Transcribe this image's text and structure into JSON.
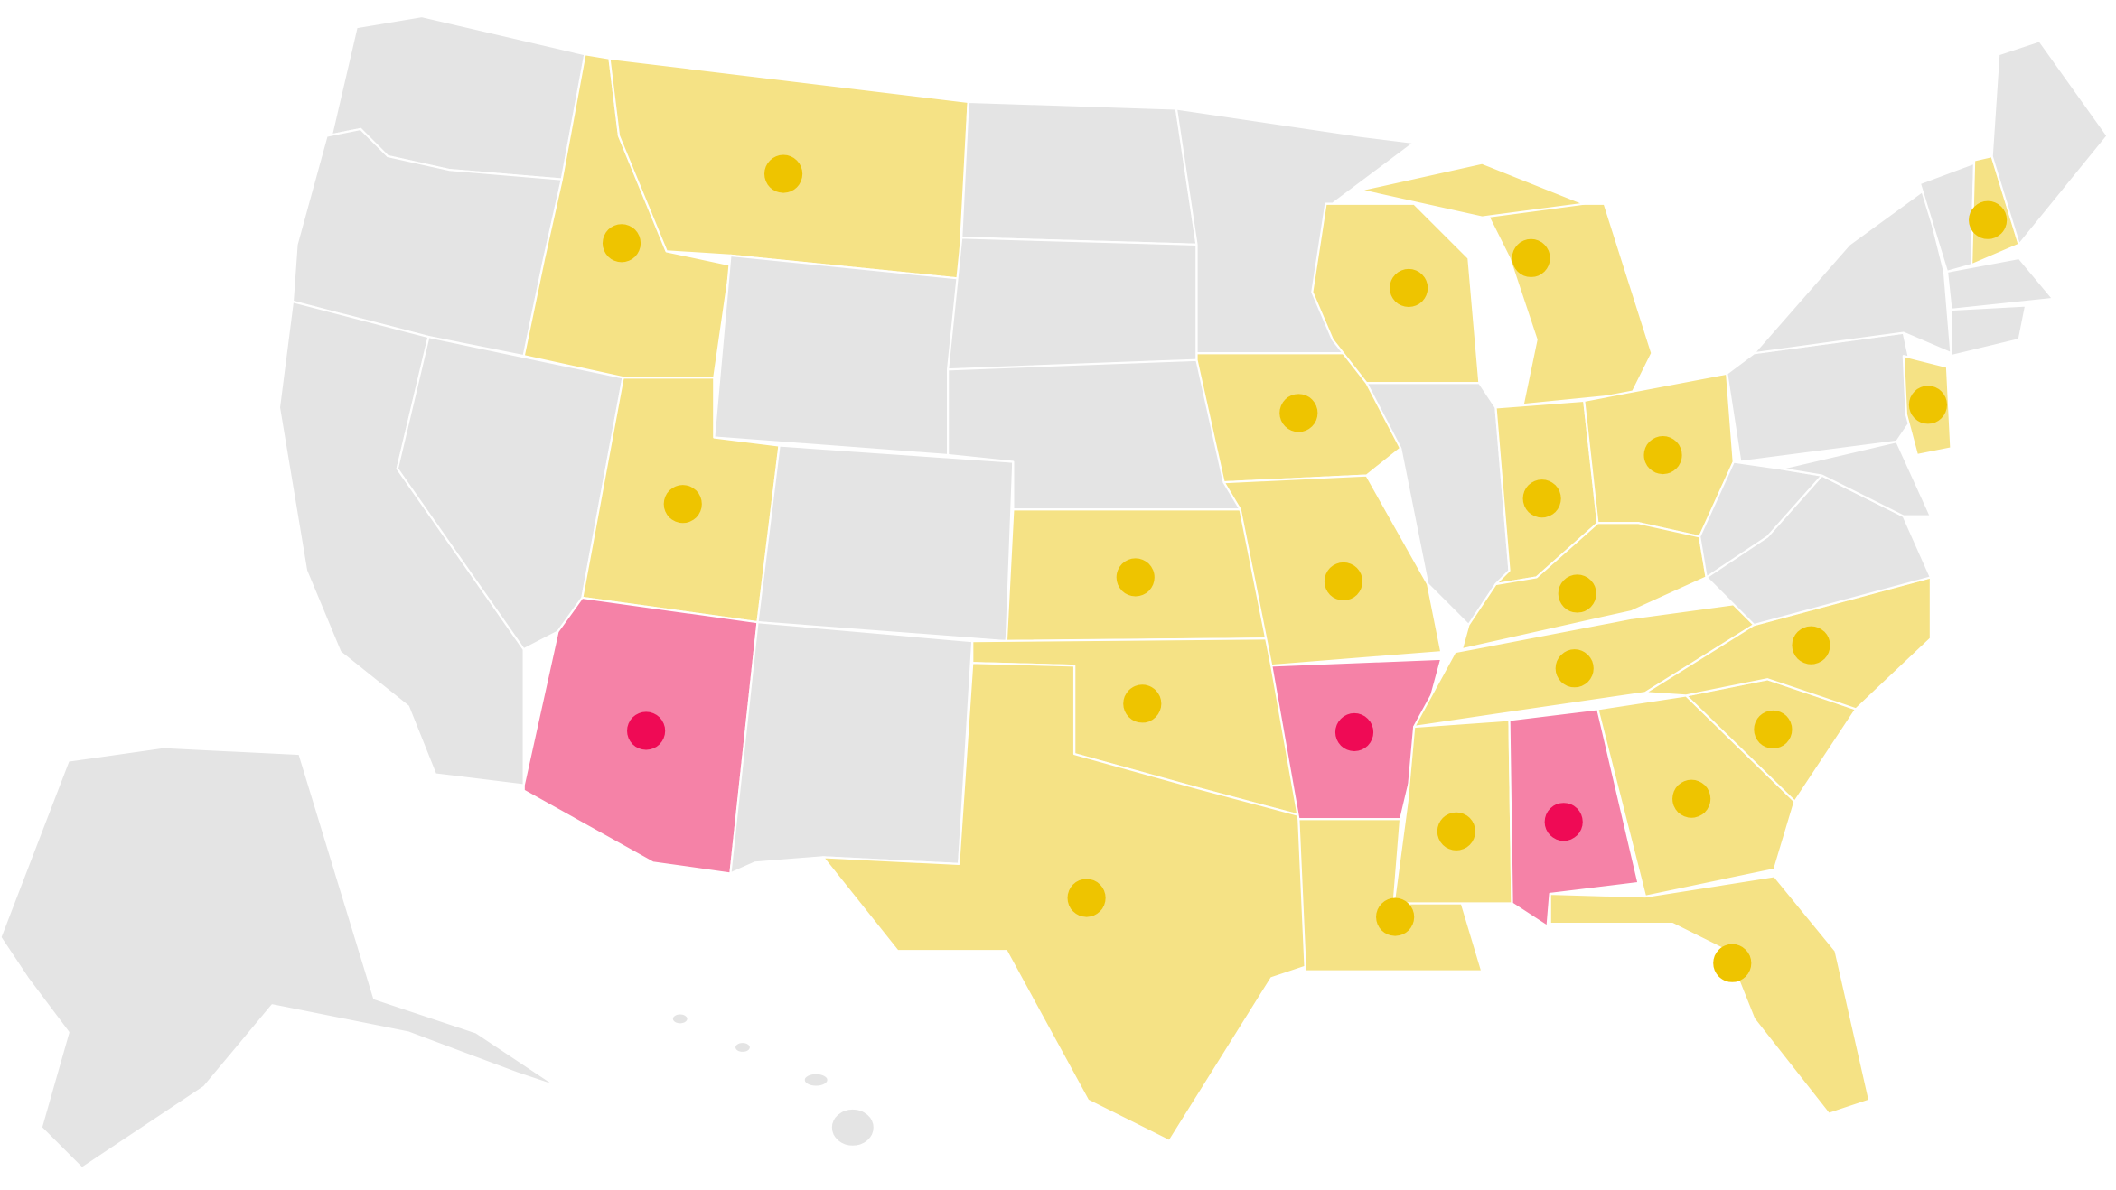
{
  "map": {
    "base_color": "#e4e4e4",
    "state_colors": [
      "#f5e285",
      "#f582a7"
    ],
    "dot_colors": [
      "#eec400",
      "#ef0a55"
    ],
    "border_color": "#ffffff"
  }
}
